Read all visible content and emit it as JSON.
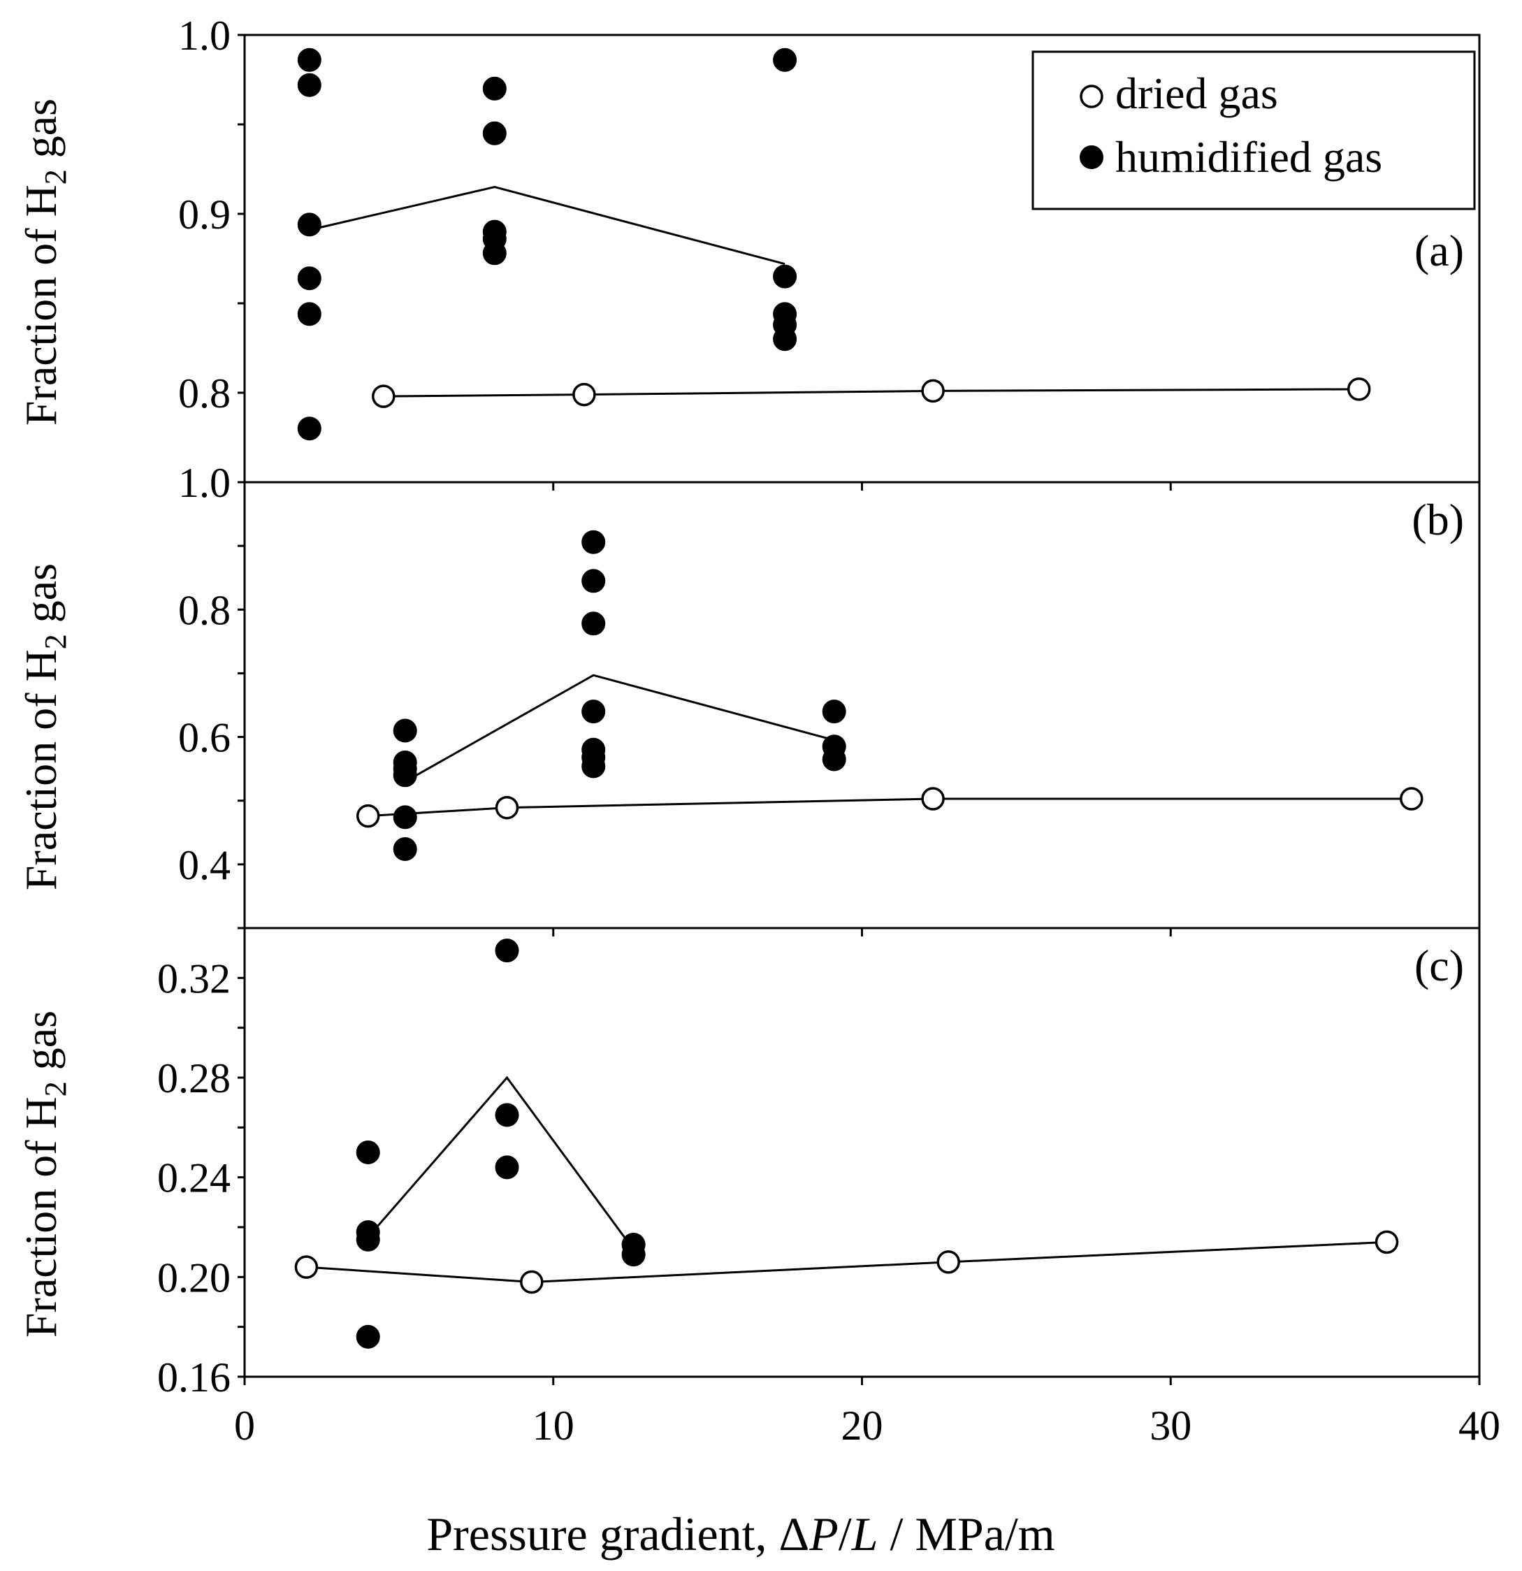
{
  "legend": {
    "placement": "top-right (panel a)",
    "entries": [
      {
        "label": "dried gas",
        "marker": "open-circle"
      },
      {
        "label": "humidified gas",
        "marker": "filled-circle"
      }
    ]
  },
  "xlabel": {
    "prefix": "Pressure gradient, Δ",
    "var1": "P",
    "slash": "/",
    "var2": "L",
    "suffix": " / MPa/m"
  },
  "ylabel": {
    "pre": "Fraction of H",
    "sub": "2",
    "post": " gas"
  },
  "chart_data": [
    {
      "type": "scatter",
      "panel_label": "(a)",
      "xlim": [
        0,
        40
      ],
      "ylim": [
        0.75,
        1.0
      ],
      "yticks": [
        {
          "v": 0.8,
          "label": "0.8"
        },
        {
          "v": 0.9,
          "label": "0.9"
        },
        {
          "v": 1.0,
          "label": "1.0"
        }
      ],
      "yminor": [
        0.75,
        0.8,
        0.85,
        0.9,
        0.95,
        1.0
      ],
      "xticks": [
        0,
        10,
        20,
        30,
        40
      ],
      "xticklabels_shown": false,
      "series": [
        {
          "name": "dried gas",
          "marker": "open",
          "points": [
            [
              4.5,
              0.798
            ],
            [
              11,
              0.799
            ],
            [
              22.3,
              0.801
            ],
            [
              36.1,
              0.802
            ]
          ],
          "line": [
            [
              4.5,
              0.798
            ],
            [
              11,
              0.799
            ],
            [
              22.3,
              0.801
            ],
            [
              36.1,
              0.802
            ]
          ]
        },
        {
          "name": "humidified gas",
          "marker": "filled",
          "points": [
            [
              2.1,
              0.986
            ],
            [
              2.1,
              0.972
            ],
            [
              2.1,
              0.894
            ],
            [
              2.1,
              0.864
            ],
            [
              2.1,
              0.844
            ],
            [
              2.1,
              0.78
            ],
            [
              8.1,
              0.97
            ],
            [
              8.1,
              0.945
            ],
            [
              8.1,
              0.89
            ],
            [
              8.1,
              0.886
            ],
            [
              8.1,
              0.878
            ],
            [
              17.5,
              0.986
            ],
            [
              17.5,
              0.865
            ],
            [
              17.5,
              0.844
            ],
            [
              17.5,
              0.838
            ],
            [
              17.5,
              0.83
            ]
          ],
          "line": [
            [
              2.1,
              0.891
            ],
            [
              8.1,
              0.915
            ],
            [
              17.5,
              0.872
            ]
          ]
        }
      ]
    },
    {
      "type": "scatter",
      "panel_label": "(b)",
      "xlim": [
        0,
        40
      ],
      "ylim": [
        0.3,
        1.0
      ],
      "yticks": [
        {
          "v": 0.4,
          "label": "0.4"
        },
        {
          "v": 0.6,
          "label": "0.6"
        },
        {
          "v": 0.8,
          "label": "0.8"
        },
        {
          "v": 1.0,
          "label": "1.0"
        }
      ],
      "yminor": [
        0.3,
        0.4,
        0.5,
        0.6,
        0.7,
        0.8,
        0.9,
        1.0
      ],
      "xticks": [
        0,
        10,
        20,
        30,
        40
      ],
      "xticklabels_shown": false,
      "series": [
        {
          "name": "dried gas",
          "marker": "open",
          "points": [
            [
              4.0,
              0.476
            ],
            [
              8.5,
              0.489
            ],
            [
              22.3,
              0.503
            ],
            [
              37.8,
              0.503
            ]
          ],
          "line": [
            [
              4.0,
              0.476
            ],
            [
              8.5,
              0.489
            ],
            [
              22.3,
              0.503
            ],
            [
              37.8,
              0.503
            ]
          ]
        },
        {
          "name": "humidified gas",
          "marker": "filled",
          "points": [
            [
              5.2,
              0.61
            ],
            [
              5.2,
              0.56
            ],
            [
              5.2,
              0.55
            ],
            [
              5.2,
              0.54
            ],
            [
              5.2,
              0.474
            ],
            [
              5.2,
              0.424
            ],
            [
              11.3,
              0.906
            ],
            [
              11.3,
              0.845
            ],
            [
              11.3,
              0.778
            ],
            [
              11.3,
              0.64
            ],
            [
              11.3,
              0.58
            ],
            [
              11.3,
              0.568
            ],
            [
              11.3,
              0.554
            ],
            [
              19.1,
              0.64
            ],
            [
              19.1,
              0.585
            ],
            [
              19.1,
              0.565
            ]
          ],
          "line": [
            [
              5.2,
              0.53
            ],
            [
              11.3,
              0.697
            ],
            [
              19.1,
              0.595
            ]
          ]
        }
      ]
    },
    {
      "type": "scatter",
      "panel_label": "(c)",
      "xlim": [
        0,
        40
      ],
      "ylim": [
        0.16,
        0.34
      ],
      "yticks": [
        {
          "v": 0.16,
          "label": "0.16"
        },
        {
          "v": 0.2,
          "label": "0.20"
        },
        {
          "v": 0.24,
          "label": "0.24"
        },
        {
          "v": 0.28,
          "label": "0.28"
        },
        {
          "v": 0.32,
          "label": "0.32"
        }
      ],
      "yminor": [
        0.16,
        0.18,
        0.2,
        0.22,
        0.24,
        0.26,
        0.28,
        0.3,
        0.32,
        0.34
      ],
      "xticks": [
        0,
        10,
        20,
        30,
        40
      ],
      "xticklabels_shown": true,
      "series": [
        {
          "name": "dried gas",
          "marker": "open",
          "points": [
            [
              2.0,
              0.204
            ],
            [
              9.3,
              0.198
            ],
            [
              22.8,
              0.206
            ],
            [
              37.0,
              0.214
            ]
          ],
          "line": [
            [
              2.0,
              0.204
            ],
            [
              9.3,
              0.198
            ],
            [
              22.8,
              0.206
            ],
            [
              37.0,
              0.214
            ]
          ]
        },
        {
          "name": "humidified gas",
          "marker": "filled",
          "points": [
            [
              4.0,
              0.25
            ],
            [
              4.0,
              0.218
            ],
            [
              4.0,
              0.215
            ],
            [
              4.0,
              0.176
            ],
            [
              8.5,
              0.331
            ],
            [
              8.5,
              0.265
            ],
            [
              8.5,
              0.244
            ],
            [
              12.6,
              0.213
            ],
            [
              12.6,
              0.209
            ]
          ],
          "line": [
            [
              4.0,
              0.216
            ],
            [
              8.5,
              0.28
            ],
            [
              12.6,
              0.211
            ]
          ]
        }
      ]
    }
  ]
}
